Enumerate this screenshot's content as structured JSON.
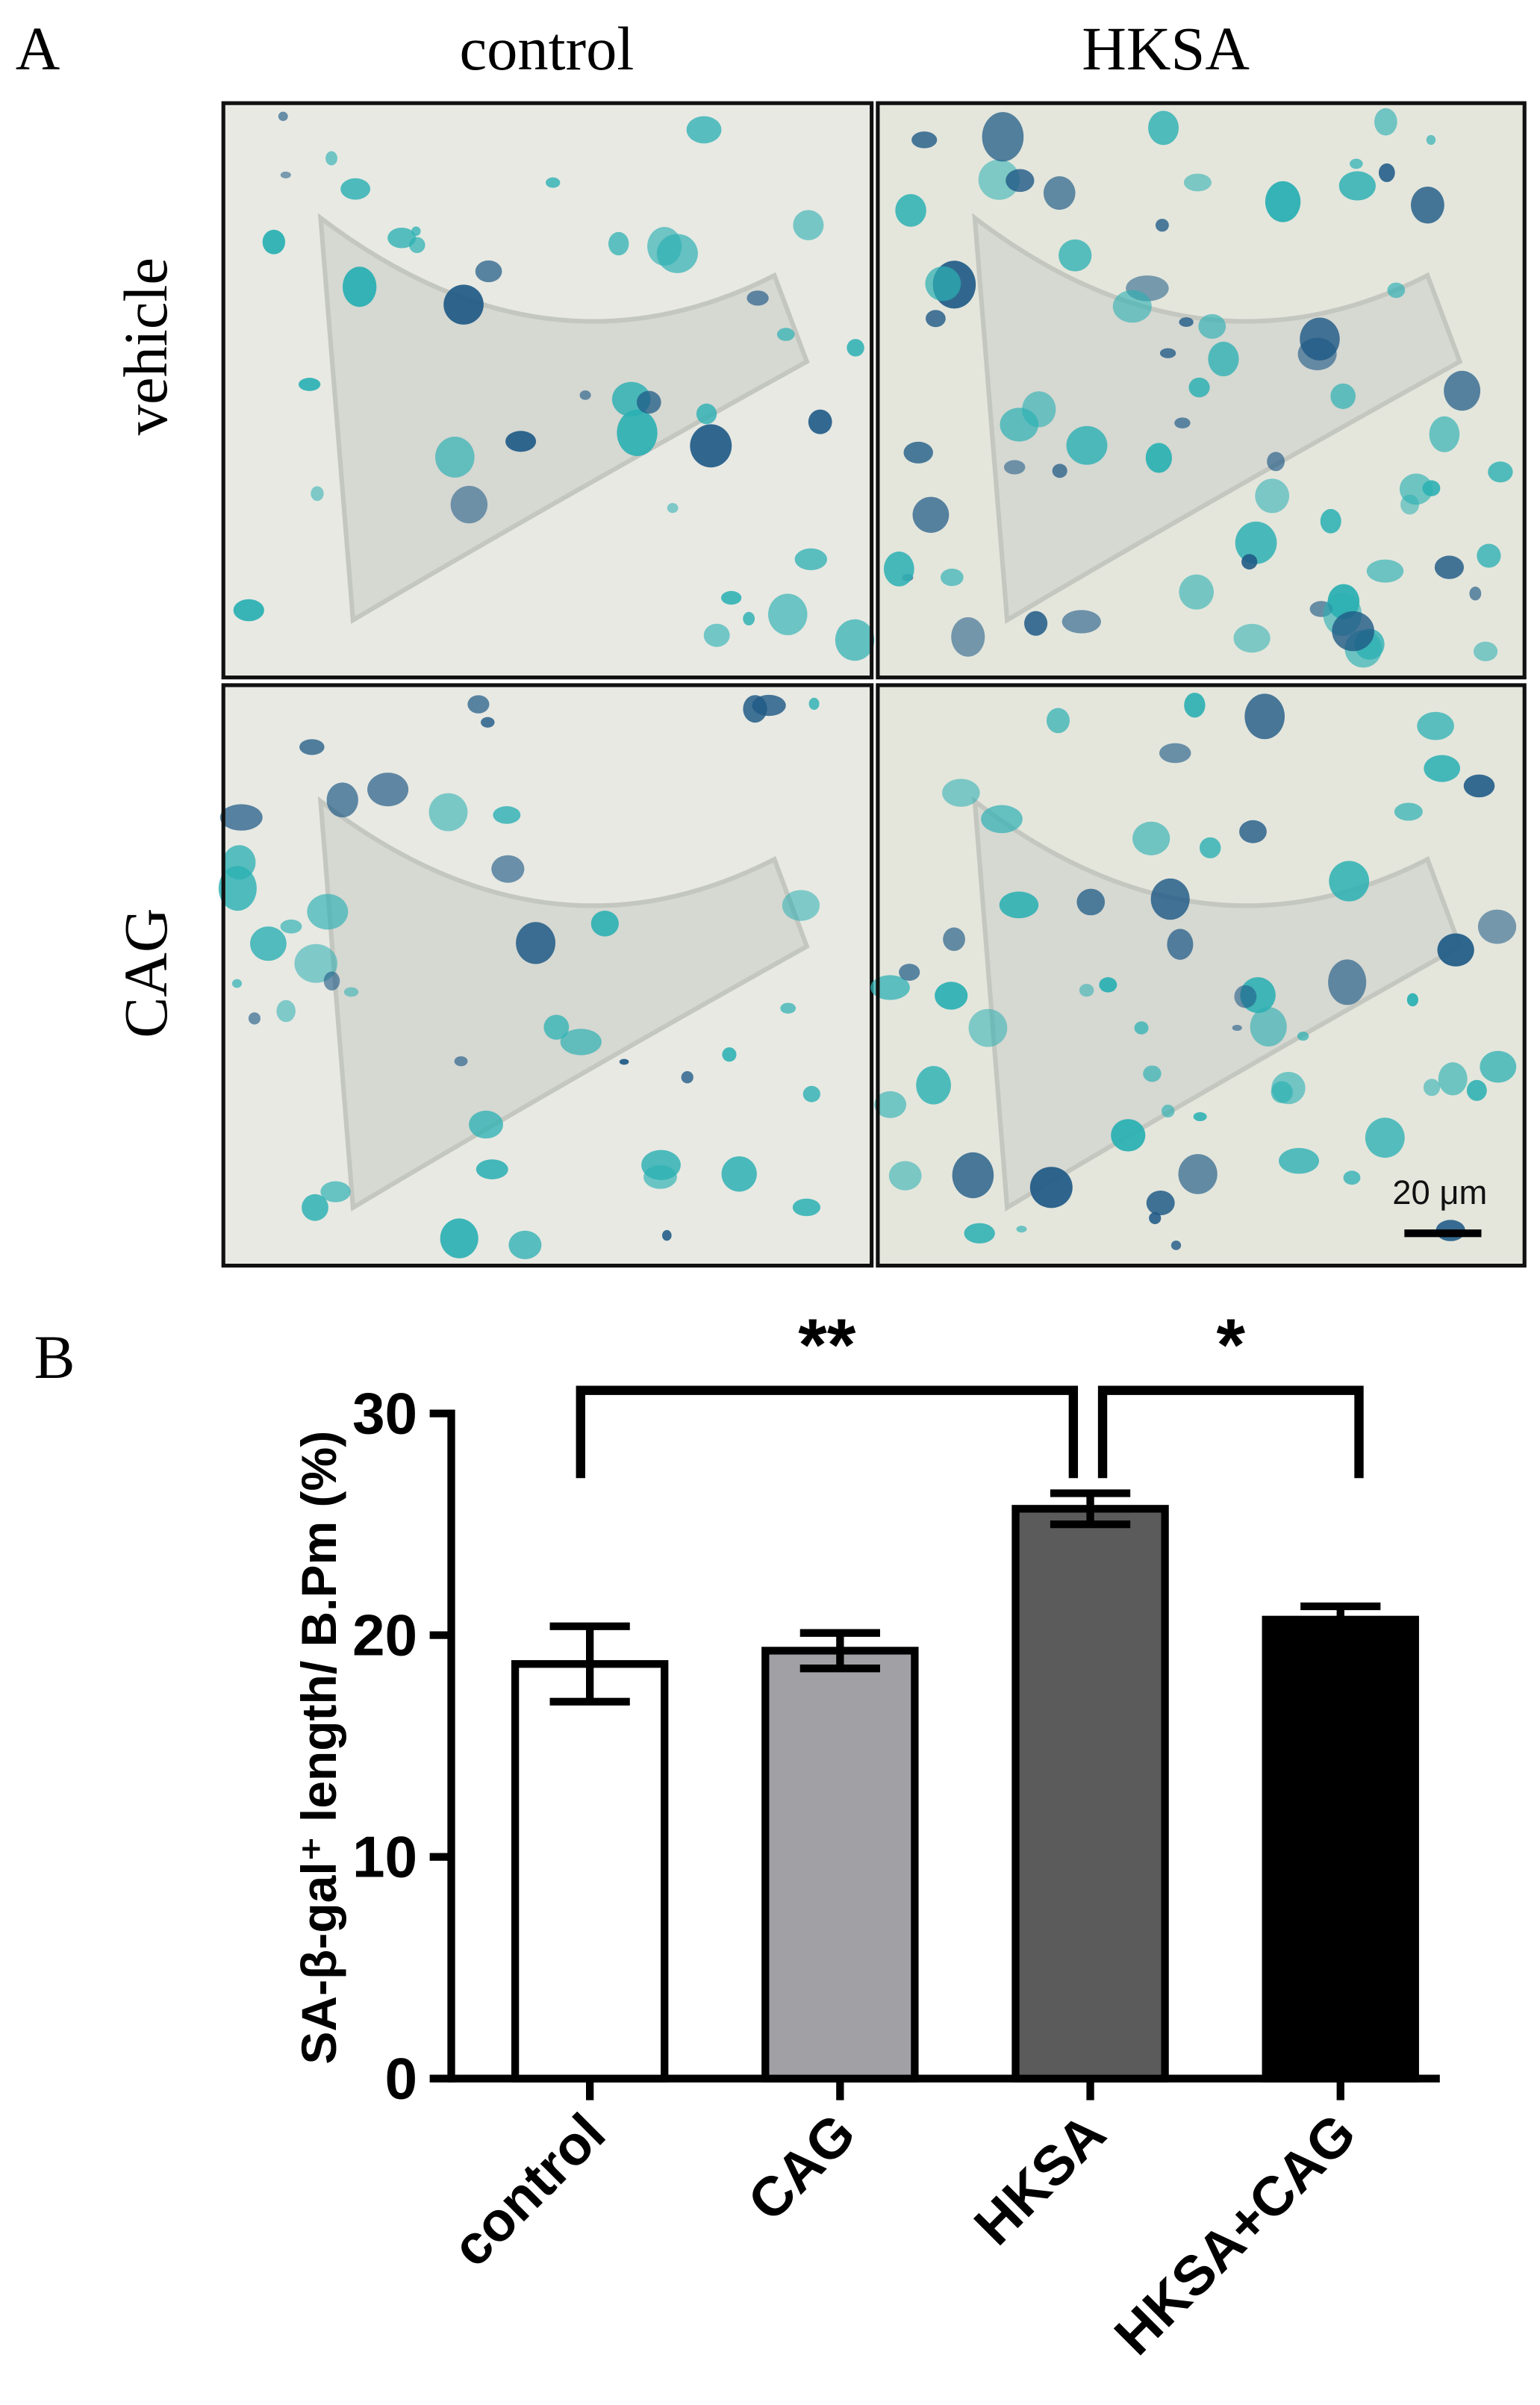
{
  "panel_a": {
    "label": "A",
    "column_headers": [
      "control",
      "HKSA"
    ],
    "row_labels": [
      "vehicle",
      "CAG"
    ],
    "scale_bar": "20 μm"
  },
  "chart_data": {
    "type": "bar",
    "panel_label": "B",
    "ylabel": "SA-β-gal⁺ length/ B.Pm (%)",
    "categories": [
      "control",
      "CAG",
      "HKSA",
      "HKSA+CAG"
    ],
    "values": [
      18.7,
      19.3,
      25.7,
      20.7
    ],
    "errors": [
      1.7,
      0.8,
      0.7,
      0.6
    ],
    "colors": [
      "#ffffff",
      "#a1a0a5",
      "#5b5b5b",
      "#000000"
    ],
    "ylim": [
      0,
      30
    ],
    "yticks": [
      0,
      10,
      20,
      30
    ],
    "significance": [
      {
        "text": "**",
        "from": 0,
        "to": 2
      },
      {
        "text": "*",
        "from": 2,
        "to": 3
      }
    ]
  }
}
